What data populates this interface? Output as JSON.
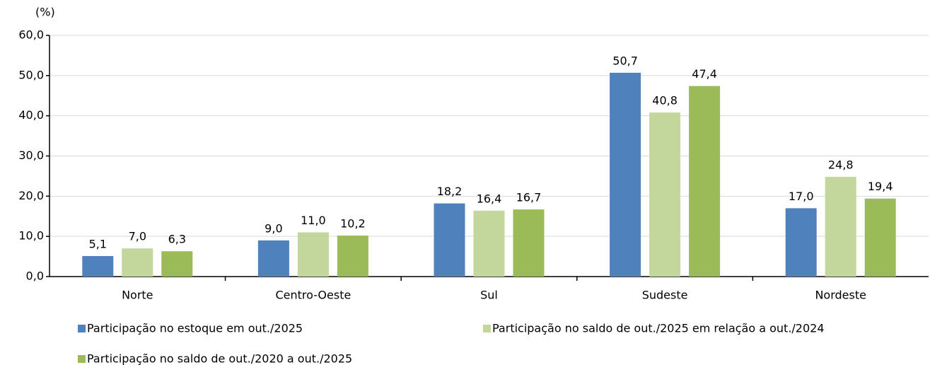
{
  "chart_data": {
    "type": "bar",
    "y_label": "(%)",
    "categories": [
      "Norte",
      "Centro-Oeste",
      "Sul",
      "Sudeste",
      "Nordeste"
    ],
    "series": [
      {
        "name": "Participação no estoque em out./2025",
        "color": "#4f81bd",
        "values": [
          5.1,
          9.0,
          18.2,
          50.7,
          17.0
        ],
        "value_labels": [
          "5,1",
          "9,0",
          "18,2",
          "50,7",
          "17,0"
        ]
      },
      {
        "name": "Participação no saldo de out./2025 em relação a out./2024",
        "color": "#c3d69b",
        "values": [
          7.0,
          11.0,
          16.4,
          40.8,
          24.8
        ],
        "value_labels": [
          "7,0",
          "11,0",
          "16,4",
          "40,8",
          "24,8"
        ]
      },
      {
        "name": "Participação no saldo de out./2020 a out./2025",
        "color": "#9bbb59",
        "values": [
          6.3,
          10.2,
          16.7,
          47.4,
          19.4
        ],
        "value_labels": [
          "6,3",
          "10,2",
          "16,7",
          "47,4",
          "19,4"
        ]
      }
    ],
    "ylim": [
      0,
      60
    ],
    "yticks": [
      {
        "value": 0,
        "label": "0,0"
      },
      {
        "value": 10,
        "label": "10,0"
      },
      {
        "value": 20,
        "label": "20,0"
      },
      {
        "value": 30,
        "label": "30,0"
      },
      {
        "value": 40,
        "label": "40,0"
      },
      {
        "value": 50,
        "label": "50,0"
      },
      {
        "value": 60,
        "label": "60,0"
      }
    ],
    "grid": true
  }
}
